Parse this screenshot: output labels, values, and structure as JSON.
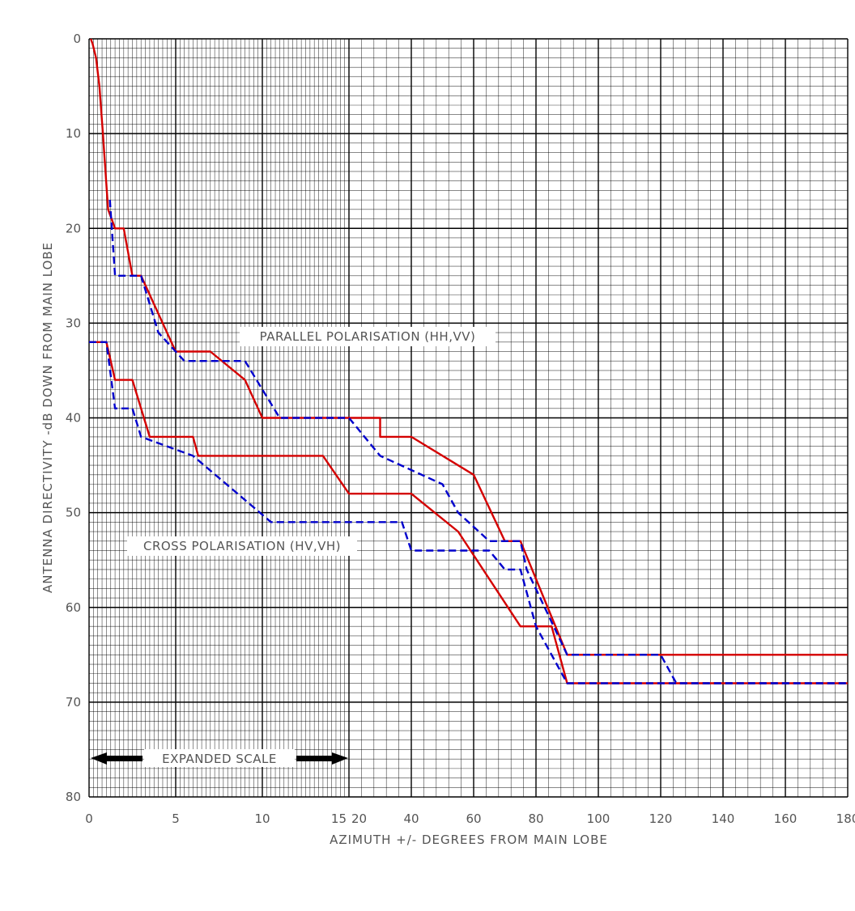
{
  "chart_data": {
    "type": "line",
    "xlabel": "AZIMUTH +/- DEGREES FROM MAIN LOBE",
    "ylabel": "ANTENNA DIRECTIVITY -dB DOWN FROM MAIN LOBE",
    "x_scale": "piecewise: 0-15 expanded, 20-180 compressed",
    "xlim": [
      0,
      180
    ],
    "ylim": [
      0,
      80
    ],
    "y_inverted": true,
    "grid": true,
    "x_ticks": [
      "0",
      "5",
      "10",
      "15",
      "20",
      "40",
      "60",
      "80",
      "100",
      "120",
      "140",
      "160",
      "180"
    ],
    "y_ticks": [
      "0",
      "10",
      "20",
      "30",
      "40",
      "50",
      "60",
      "70",
      "80"
    ],
    "annotations": {
      "parallel": "PARALLEL POLARISATION (HH,VV)",
      "cross": "CROSS POLARISATION (HV,VH)",
      "expanded": "EXPANDED SCALE"
    },
    "colors": {
      "envelope": "#d40000",
      "pattern": "#0000cc",
      "grid": "#000000"
    },
    "series": [
      {
        "group": "parallel",
        "style": "solid",
        "color": "#d40000",
        "points": [
          [
            0.1,
            0
          ],
          [
            0.2,
            0.5
          ],
          [
            0.4,
            2
          ],
          [
            0.6,
            5
          ],
          [
            0.8,
            10
          ],
          [
            1.1,
            18
          ],
          [
            1.5,
            20
          ],
          [
            2,
            20
          ],
          [
            2.5,
            25
          ],
          [
            3,
            25
          ],
          [
            4,
            29
          ],
          [
            5,
            33
          ],
          [
            7,
            33
          ],
          [
            9,
            36
          ],
          [
            10,
            40
          ],
          [
            30,
            40
          ],
          [
            30,
            42
          ],
          [
            40,
            42
          ],
          [
            60,
            46
          ],
          [
            70,
            53
          ],
          [
            75,
            53
          ],
          [
            90,
            65
          ],
          [
            180,
            65
          ]
        ]
      },
      {
        "group": "parallel",
        "style": "dashed",
        "color": "#0000cc",
        "points": [
          [
            1.2,
            17
          ],
          [
            1.5,
            25
          ],
          [
            3,
            25
          ],
          [
            4,
            31
          ],
          [
            5,
            33
          ],
          [
            5.5,
            34
          ],
          [
            9,
            34
          ],
          [
            11,
            40
          ],
          [
            15,
            40
          ],
          [
            30,
            44
          ],
          [
            50,
            47
          ],
          [
            55,
            50
          ],
          [
            65,
            53
          ],
          [
            75,
            53
          ],
          [
            77,
            56
          ],
          [
            90,
            65
          ],
          [
            120,
            65
          ],
          [
            125,
            68
          ],
          [
            180,
            68
          ]
        ]
      },
      {
        "group": "cross",
        "style": "solid",
        "color": "#d40000",
        "points": [
          [
            0,
            32
          ],
          [
            1,
            32
          ],
          [
            1.5,
            36
          ],
          [
            2.5,
            36
          ],
          [
            3.5,
            42
          ],
          [
            6,
            42
          ],
          [
            6.3,
            44
          ],
          [
            13.5,
            44
          ],
          [
            15,
            48
          ],
          [
            40,
            48
          ],
          [
            55,
            52
          ],
          [
            75,
            62
          ],
          [
            85,
            62
          ],
          [
            90,
            68
          ],
          [
            180,
            68
          ]
        ]
      },
      {
        "group": "cross",
        "style": "dashed",
        "color": "#0000cc",
        "points": [
          [
            0,
            32
          ],
          [
            1,
            32
          ],
          [
            1.5,
            39
          ],
          [
            2.5,
            39
          ],
          [
            3,
            42
          ],
          [
            6,
            44
          ],
          [
            10.5,
            51
          ],
          [
            37,
            51
          ],
          [
            40,
            54
          ],
          [
            65,
            54
          ],
          [
            70,
            56
          ],
          [
            75,
            56
          ],
          [
            80,
            62
          ],
          [
            90,
            68
          ],
          [
            180,
            68
          ]
        ]
      }
    ]
  }
}
